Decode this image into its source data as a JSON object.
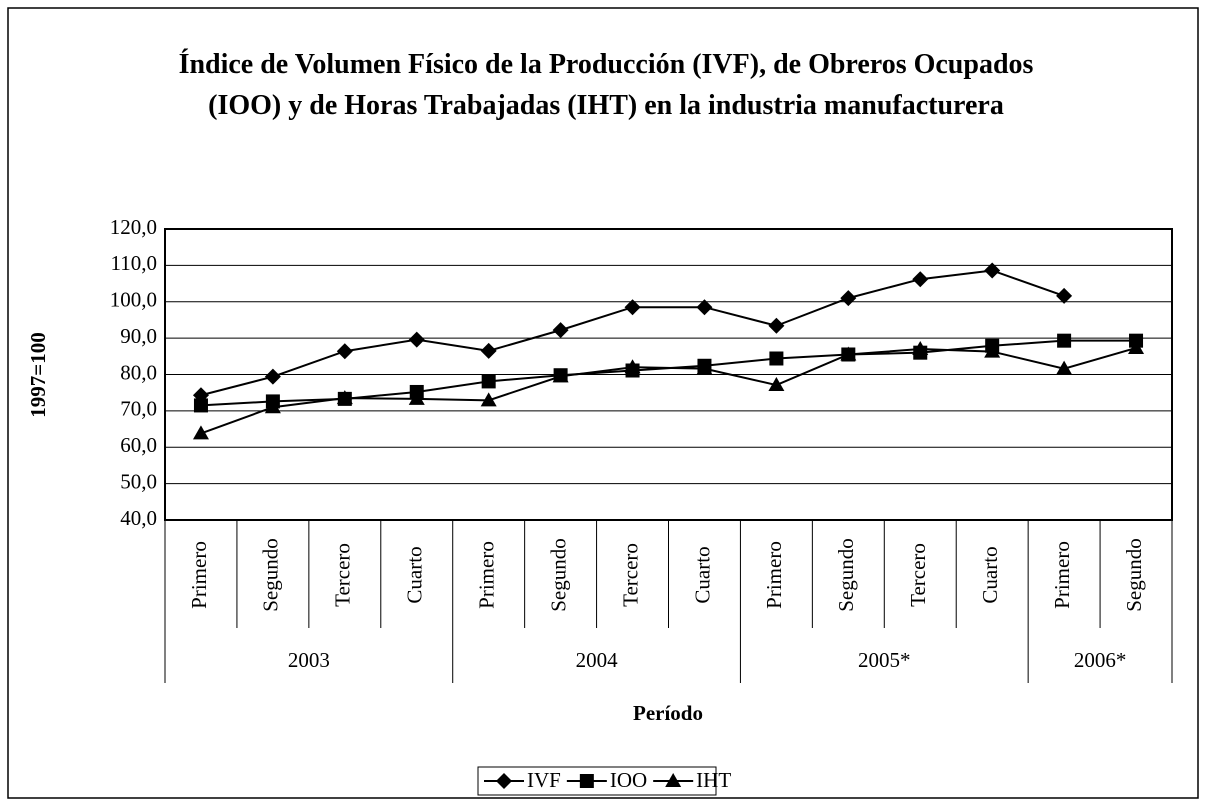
{
  "chart_data": {
    "type": "line",
    "title": "Índice de Volumen Físico de la Producción (IVF), de Obreros Ocupados (IOO) y de Horas Trabajadas (IHT) en la industria manufacturera",
    "x_label": "Período",
    "y_label": "1997=100",
    "categories": [
      "Primero",
      "Segundo",
      "Tercero",
      "Cuarto",
      "Primero",
      "Segundo",
      "Tercero",
      "Cuarto",
      "Primero",
      "Segundo",
      "Tercero",
      "Cuarto",
      "Primero",
      "Segundo"
    ],
    "category_groups": [
      "2003",
      "2003",
      "2003",
      "2003",
      "2004",
      "2004",
      "2004",
      "2004",
      "2005*",
      "2005*",
      "2005*",
      "2005*",
      "2006*",
      "2006*"
    ],
    "series": [
      {
        "name": "IVF",
        "color": "#000000",
        "marker": "diamond",
        "values": [
          74.3,
          79.4,
          86.4,
          89.6,
          86.5,
          92.2,
          98.5,
          98.5,
          93.4,
          101.0,
          106.2,
          108.6,
          101.6,
          null
        ]
      },
      {
        "name": "IOO",
        "color": "#000000",
        "marker": "square",
        "values": [
          71.5,
          72.6,
          73.3,
          75.2,
          78.1,
          79.8,
          81.1,
          82.4,
          84.4,
          85.5,
          86.0,
          87.9,
          89.3,
          89.3
        ]
      },
      {
        "name": "IHT",
        "color": "#000000",
        "marker": "triangle",
        "values": [
          63.8,
          71.0,
          73.5,
          73.3,
          72.9,
          79.5,
          82.0,
          81.6,
          77.1,
          85.5,
          87.0,
          86.3,
          81.6,
          87.3
        ]
      }
    ],
    "ylim": [
      40,
      120
    ],
    "yticks": [
      {
        "value": 40,
        "label": "40,0"
      },
      {
        "value": 50,
        "label": "50,0"
      },
      {
        "value": 60,
        "label": "60,0"
      },
      {
        "value": 70,
        "label": "70,0"
      },
      {
        "value": 80,
        "label": "80,0"
      },
      {
        "value": 90,
        "label": "90,0"
      },
      {
        "value": 100,
        "label": "100,0"
      },
      {
        "value": 110,
        "label": "110,0"
      },
      {
        "value": 120,
        "label": "120,0"
      }
    ],
    "grid": true,
    "legend": "bottom"
  }
}
